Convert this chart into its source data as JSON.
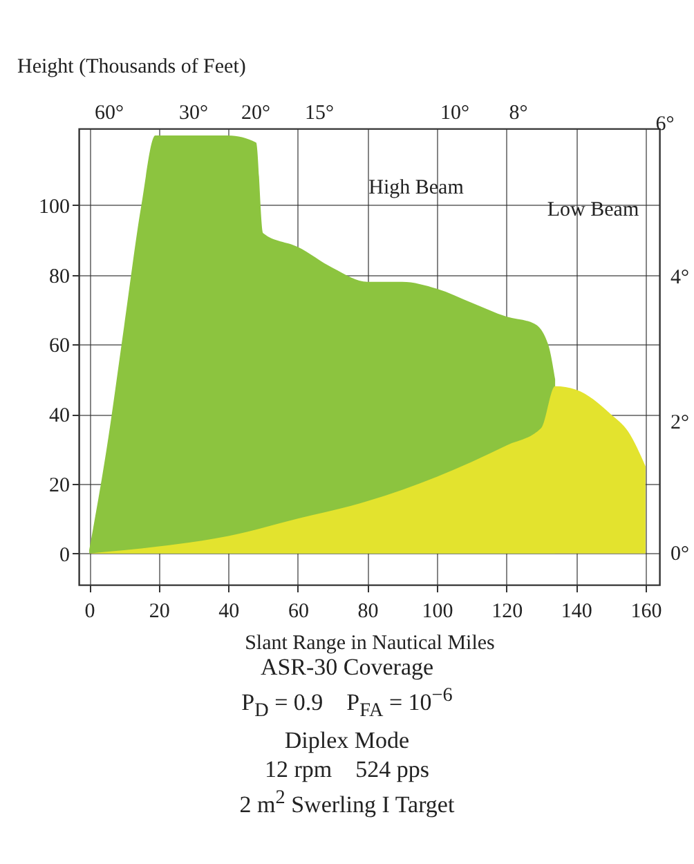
{
  "chart_data": {
    "type": "area",
    "ylabel": "Height (Thousands of Feet)",
    "xlabel": "Slant Range in Nautical Miles",
    "title": "ASR-30 Coverage",
    "annotations": [
      "60°",
      "30°",
      "20°",
      "15°",
      "10°",
      "8°",
      "6°",
      "4°",
      "2°",
      "0°",
      "High Beam",
      "Low Beam",
      "P$_{D}$ = 0.9    P$_{FA}$ = 10$^{−6}$",
      "Diplex Mode",
      "12 rpm    524 pps",
      "2 m$^{2}$ Swerling I Target"
    ],
    "series": [
      {
        "color": "#8cc43f",
        "x": [
          0,
          5,
          10,
          15,
          19,
          30,
          40,
          48,
          50,
          60,
          70,
          80,
          90,
          100,
          110,
          120,
          128,
          132,
          134
        ],
        "values": [
          1,
          30,
          65,
          100,
          120,
          120,
          120,
          118,
          92,
          88,
          82,
          78,
          78,
          76,
          72,
          68,
          66,
          60,
          50
        ]
      },
      {
        "color": "#e3e32e",
        "x": [
          0,
          20,
          40,
          60,
          80,
          100,
          120,
          130,
          134,
          140,
          150,
          155,
          160
        ],
        "values": [
          0,
          2,
          5,
          10,
          15,
          22,
          31,
          36,
          48,
          47,
          40,
          35,
          25
        ]
      }
    ],
    "xlim": [
      -3,
      164
    ],
    "ylim": [
      -9,
      122
    ],
    "xticks": [
      0,
      20,
      40,
      60,
      80,
      100,
      120,
      140,
      160
    ],
    "yticks": [
      0,
      20,
      40,
      60,
      80,
      100
    ],
    "grid": true
  }
}
